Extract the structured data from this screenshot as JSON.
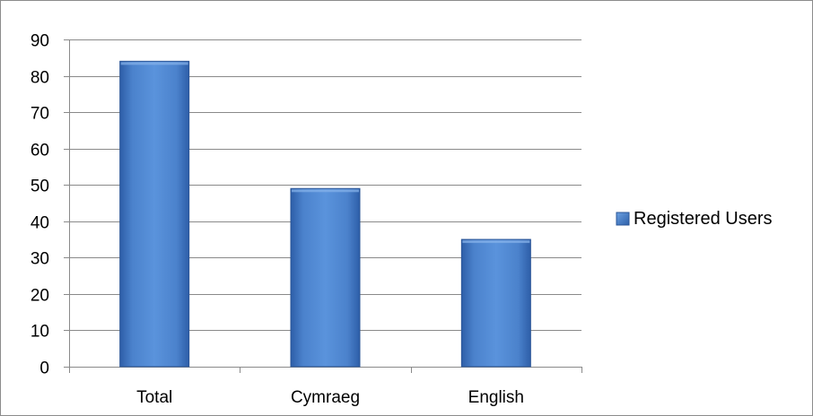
{
  "chart_data": {
    "type": "bar",
    "categories": [
      "Total",
      "Cymraeg",
      "English"
    ],
    "series": [
      {
        "name": "Registered Users",
        "values": [
          84,
          49,
          35
        ],
        "color": "#4a7ec4"
      }
    ],
    "ylim": [
      0,
      90
    ],
    "yticks": [
      0,
      10,
      20,
      30,
      40,
      50,
      60,
      70,
      80,
      90
    ],
    "grid": true,
    "legend": "right",
    "title": "",
    "xlabel": "",
    "ylabel": ""
  }
}
